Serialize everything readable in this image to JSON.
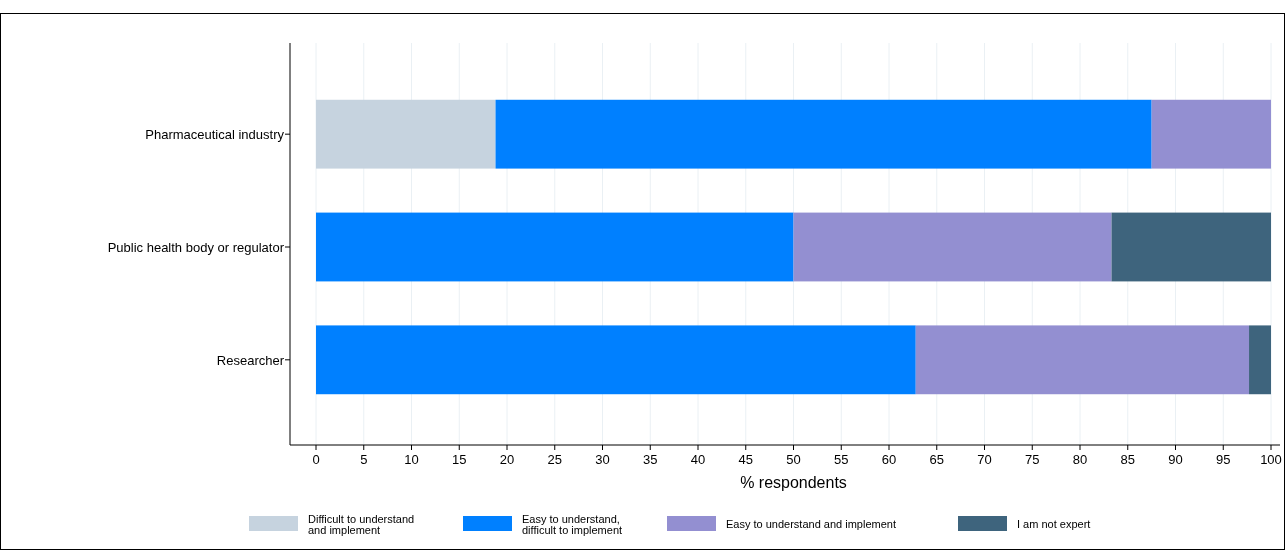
{
  "chart_data": {
    "type": "bar",
    "orientation": "horizontal",
    "stacked": true,
    "xlabel": "% respondents",
    "categories": [
      "Pharmaceutical industry",
      "Public health body or regulator",
      "Researcher"
    ],
    "series": [
      {
        "name": "Difficult to understand\nand implement",
        "color": "#c6d3df",
        "values": [
          18.8,
          0,
          0
        ]
      },
      {
        "name": "Easy to understand,\ndifficult to implement",
        "color": "#0080ff",
        "values": [
          68.7,
          50,
          62.8
        ]
      },
      {
        "name": "Easy to understand and implement",
        "color": "#938fd1",
        "values": [
          12.5,
          33.3,
          34.9
        ]
      },
      {
        "name": "I am not expert",
        "color": "#3e647d",
        "values": [
          0,
          16.7,
          2.3
        ]
      }
    ],
    "xlim": [
      0,
      100
    ],
    "xticks": [
      0,
      5,
      10,
      15,
      20,
      25,
      30,
      35,
      40,
      45,
      50,
      55,
      60,
      65,
      70,
      75,
      80,
      85,
      90,
      95,
      100
    ],
    "grid": "x",
    "legend": "bottom"
  }
}
